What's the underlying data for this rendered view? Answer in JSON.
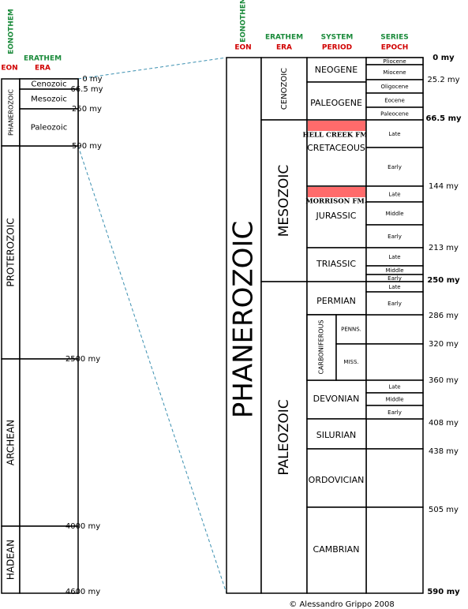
{
  "left": {
    "header": {
      "eonothem": "EONOTHEM",
      "eon": "EON",
      "erathem": "ERATHEM",
      "era": "ERA"
    },
    "eons": [
      "PHANEROZOIC",
      "PROTEROZOIC",
      "ARCHEAN",
      "HADEAN"
    ],
    "eras": [
      "Cenozoic",
      "Mesozoic",
      "Paleozoic"
    ],
    "ages": [
      "0 my",
      "66.5 my",
      "250 my",
      "590 my",
      "2500 my",
      "4000 my",
      "4600 my"
    ]
  },
  "right": {
    "header": {
      "eonothem": "EONOTHEM",
      "eon": "EON",
      "erathem": "ERATHEM",
      "era": "ERA",
      "system": "SYSTEM",
      "period": "PERIOD",
      "series": "SERIES",
      "epoch": "EPOCH"
    },
    "eon": "PHANEROZOIC",
    "eras": [
      "CENOZOIC",
      "MESOZOIC",
      "PALEOZOIC"
    ],
    "systems": [
      "NEOGENE",
      "PALEOGENE",
      "CRETACEOUS",
      "JURASSIC",
      "TRIASSIC",
      "PERMIAN",
      "CARBONIFEROUS",
      "DEVONIAN",
      "SILURIAN",
      "ORDOVICIAN",
      "CAMBRIAN"
    ],
    "formations": [
      "HELL CREEK FM.",
      "MORRISON FM."
    ],
    "subsystems": [
      "PENNS.",
      "MISS."
    ],
    "series": [
      "Pliocene",
      "Miocene",
      "Oligocene",
      "Eocene",
      "Paleocene",
      "Late",
      "Early",
      "Late",
      "Middle",
      "Early",
      "Late",
      "Middle",
      "Early",
      "Late",
      "Early",
      "Late",
      "Middle",
      "Early"
    ],
    "ages": [
      "0 my",
      "25.2 my",
      "66.5 my",
      "144 my",
      "213 my",
      "250 my",
      "286 my",
      "320 my",
      "360 my",
      "408 my",
      "438 my",
      "505 my",
      "590 my"
    ]
  },
  "footer": "© Alessandro Grippo 2008"
}
